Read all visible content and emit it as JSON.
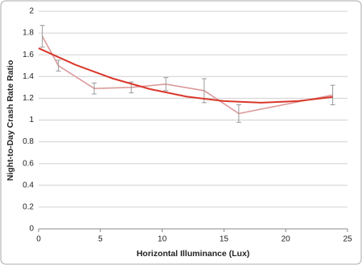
{
  "chart_data": {
    "type": "line",
    "x_label": "Horizontal Illuminance (Lux)",
    "y_label": "Night-to-Day Crash Rate Ratio",
    "xlim": [
      0,
      25
    ],
    "xticks": [
      0,
      5,
      10,
      15,
      20,
      25
    ],
    "ylim": [
      0,
      2
    ],
    "yticks": [
      0,
      0.2,
      0.4,
      0.6,
      0.8,
      1,
      1.2,
      1.4,
      1.6,
      1.8,
      2
    ],
    "grid": true,
    "series": [
      {
        "color": "#dc9a9a",
        "x": [
          0.3,
          1.6,
          4.5,
          7.5,
          10.3,
          13.4,
          16.2,
          23.8
        ],
        "values": [
          1.77,
          1.5,
          1.29,
          1.3,
          1.33,
          1.27,
          1.06,
          1.23
        ],
        "errors": [
          0.1,
          0.05,
          0.05,
          0.05,
          0.06,
          0.11,
          0.08,
          0.09
        ]
      },
      {
        "color": "#d9372a",
        "x": [
          0,
          3,
          6,
          9,
          12,
          15,
          18,
          21,
          23.8
        ],
        "values": [
          1.66,
          1.507,
          1.382,
          1.285,
          1.215,
          1.174,
          1.16,
          1.174,
          1.212
        ]
      }
    ]
  }
}
